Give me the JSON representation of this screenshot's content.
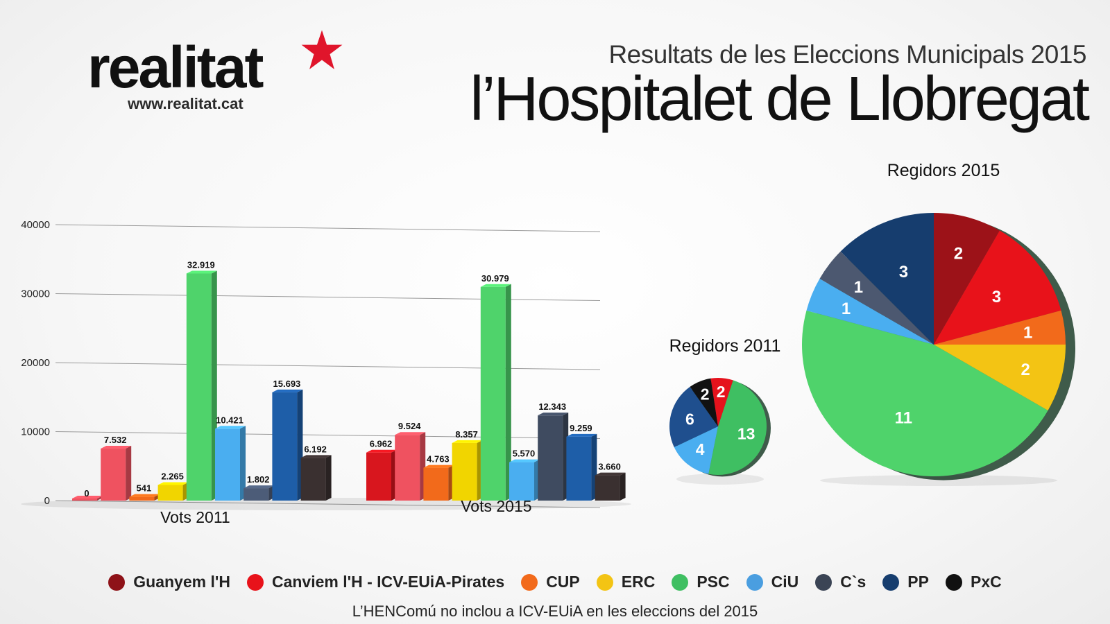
{
  "brand": {
    "name": "realitat",
    "url": "www.realitat.cat",
    "star_color": "#e0152b"
  },
  "header": {
    "subtitle": "Resultats de les Eleccions Municipals 2015",
    "title": "l’Hospitalet de Llobregat"
  },
  "chart_data": [
    {
      "type": "bar",
      "title": "",
      "ylim": [
        0,
        40000
      ],
      "yticks": [
        0,
        10000,
        20000,
        30000,
        40000
      ],
      "groups": [
        {
          "name": "Vots 2011",
          "bars": [
            {
              "party": "Guanyem l'H",
              "value": 0,
              "label": "0",
              "color": "#ef5260"
            },
            {
              "party": "Canviem l'H - ICV-EUiA-Pirates",
              "value": 7532,
              "label": "7.532",
              "color": "#ef5260"
            },
            {
              "party": "CUP",
              "value": 541,
              "label": "541",
              "color": "#f26a1b"
            },
            {
              "party": "ERC",
              "value": 2265,
              "label": "2.265",
              "color": "#f1d500"
            },
            {
              "party": "PSC",
              "value": 32919,
              "label": "32.919",
              "color": "#4fd36b"
            },
            {
              "party": "CiU",
              "value": 10421,
              "label": "10.421",
              "color": "#4aaef0"
            },
            {
              "party": "C`s",
              "value": 1802,
              "label": "1.802",
              "color": "#4c5c78"
            },
            {
              "party": "PP",
              "value": 15693,
              "label": "15.693",
              "color": "#1e5ea8"
            },
            {
              "party": "PxC",
              "value": 6192,
              "label": "6.192",
              "color": "#3a3030"
            }
          ]
        },
        {
          "name": "Vots 2015",
          "bars": [
            {
              "party": "Guanyem l'H",
              "value": 6962,
              "label": "6.962",
              "color": "#d8161e"
            },
            {
              "party": "Canviem l'H - ICV-EUiA-Pirates",
              "value": 9524,
              "label": "9.524",
              "color": "#ef5260"
            },
            {
              "party": "CUP",
              "value": 4763,
              "label": "4.763",
              "color": "#f26a1b"
            },
            {
              "party": "ERC",
              "value": 8357,
              "label": "8.357",
              "color": "#f1d500"
            },
            {
              "party": "PSC",
              "value": 30979,
              "label": "30.979",
              "color": "#4fd36b"
            },
            {
              "party": "CiU",
              "value": 5570,
              "label": "5.570",
              "color": "#4aaef0"
            },
            {
              "party": "C`s",
              "value": 12343,
              "label": "12.343",
              "color": "#3f4b60"
            },
            {
              "party": "PP",
              "value": 9259,
              "label": "9.259",
              "color": "#1e5ea8"
            },
            {
              "party": "PxC",
              "value": 3660,
              "label": "3.660",
              "color": "#3a3030"
            }
          ]
        }
      ]
    },
    {
      "type": "pie",
      "title": "Regidors 2011",
      "slices": [
        {
          "party": "PSC",
          "value": 13,
          "color": "#3fbf62"
        },
        {
          "party": "CiU",
          "value": 4,
          "color": "#4aaef0"
        },
        {
          "party": "PP",
          "value": 6,
          "color": "#1f4f8e"
        },
        {
          "party": "PxC",
          "value": 2,
          "color": "#111111"
        },
        {
          "party": "Canviem l'H - ICV-EUiA-Pirates",
          "value": 2,
          "color": "#e5121c"
        }
      ]
    },
    {
      "type": "pie",
      "title": "Regidors 2015",
      "slices": [
        {
          "party": "PSC",
          "value": 11,
          "color": "#4fd36b"
        },
        {
          "party": "CiU",
          "value": 1,
          "color": "#4aaef0"
        },
        {
          "party": "C`s",
          "value": 1,
          "color": "#4c5870"
        },
        {
          "party": "PP",
          "value": 3,
          "color": "#163d6e"
        },
        {
          "party": "Guanyem l'H",
          "value": 2,
          "color": "#9c1218"
        },
        {
          "party": "Canviem l'H - ICV-EUiA-Pirates",
          "value": 3,
          "color": "#e8121a"
        },
        {
          "party": "CUP",
          "value": 1,
          "color": "#f26a1b"
        },
        {
          "party": "ERC",
          "value": 2,
          "color": "#f3c414"
        }
      ]
    }
  ],
  "legend": [
    {
      "label": "Guanyem l'H",
      "color": "#8e1218"
    },
    {
      "label": "Canviem l'H - ICV-EUiA-Pirates",
      "color": "#e8121a"
    },
    {
      "label": "CUP",
      "color": "#f26a1b"
    },
    {
      "label": "ERC",
      "color": "#f3c414"
    },
    {
      "label": "PSC",
      "color": "#3fbf62"
    },
    {
      "label": "CiU",
      "color": "#4a9ee0"
    },
    {
      "label": "C`s",
      "color": "#3b4455"
    },
    {
      "label": "PP",
      "color": "#163d6e"
    },
    {
      "label": "PxC",
      "color": "#111111"
    }
  ],
  "footnote": "L’HENComú no inclou a ICV-EUiA en les eleccions del 2015"
}
